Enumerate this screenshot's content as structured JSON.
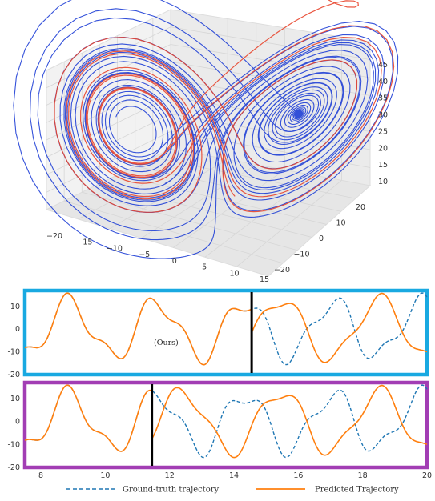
{
  "chart_data": [
    {
      "type": "line-3d",
      "description_axes": "3D phase-space plot",
      "x_ticks": [
        "−20",
        "−15",
        "−10",
        "−5",
        "0",
        "5",
        "10",
        "15"
      ],
      "y_ticks": [
        "−20",
        "−10",
        "0",
        "10",
        "20"
      ],
      "z_ticks": [
        "10",
        "15",
        "20",
        "25",
        "30",
        "35",
        "40",
        "45"
      ],
      "series": [
        {
          "color": "#1f3fd6"
        },
        {
          "color": "#e8452c"
        }
      ]
    },
    {
      "type": "line",
      "border_color": "#19a9e1",
      "xlim": [
        7.5,
        20
      ],
      "ylim": [
        -20,
        17
      ],
      "y_ticks": [
        10,
        0,
        -10,
        -20
      ],
      "annotation": "(Ours)",
      "divider_x": 14.55,
      "series": [
        {
          "color": "#1f77b4"
        },
        {
          "color": "#ff7f0e"
        }
      ]
    },
    {
      "type": "line",
      "border_color": "#a23db4",
      "xlim": [
        7.5,
        20
      ],
      "ylim": [
        -20,
        17
      ],
      "y_ticks": [
        10,
        0,
        -10,
        -20
      ],
      "x_ticks": [
        8,
        10,
        12,
        14,
        16,
        18,
        20
      ],
      "divider_x": 11.45,
      "series": [
        {
          "color": "#1f77b4"
        },
        {
          "color": "#ff7f0e"
        }
      ]
    }
  ],
  "legend": {
    "ground_truth": "Ground-truth trajectory",
    "predicted": "Predicted Trajectory"
  }
}
